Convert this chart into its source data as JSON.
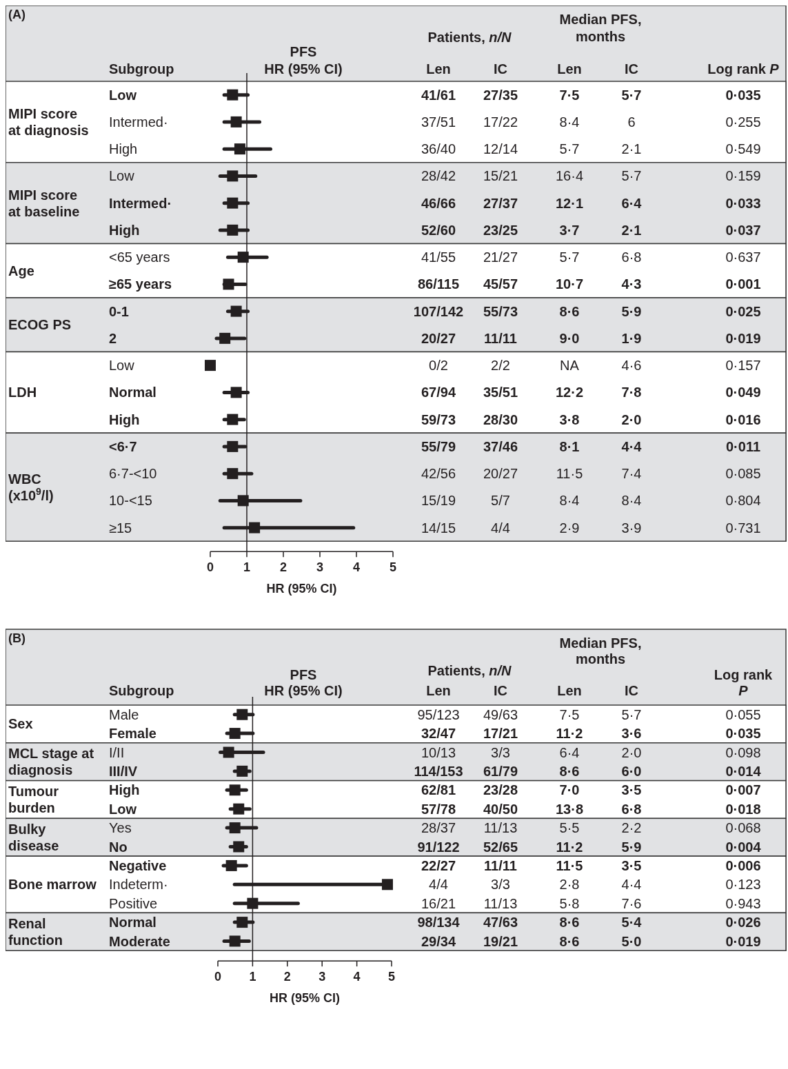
{
  "chart_data": [
    {
      "type": "scatter",
      "orientation": "horizontal",
      "marker": "square",
      "xlabel": "HR (95% CI)",
      "xlim": [
        0,
        5
      ],
      "xticks": [
        0,
        1,
        2,
        3,
        4,
        5
      ],
      "ref_lines": [
        {
          "axis": "x",
          "value": 1
        }
      ],
      "categories": [
        "Low",
        "Intermed·",
        "High",
        "Low",
        "Intermed·",
        "High",
        "<65 years",
        "≥65 years",
        "0-1",
        "2",
        "Low",
        "Normal",
        "High",
        "<6·7",
        "6·7-<10",
        "10-<15",
        "≥15"
      ],
      "values": [
        0.61,
        0.71,
        0.81,
        0.61,
        0.61,
        0.61,
        0.9,
        0.5,
        0.71,
        0.4,
        0,
        0.71,
        0.61,
        0.61,
        0.61,
        0.9,
        1.21
      ],
      "errors": [
        [
          0.38,
          1.03
        ],
        [
          0.38,
          1.35
        ],
        [
          0.38,
          1.65
        ],
        [
          0.27,
          1.24
        ],
        [
          0.38,
          1.03
        ],
        [
          0.27,
          1.03
        ],
        [
          0.48,
          1.55
        ],
        [
          0.38,
          0.96
        ],
        [
          0.48,
          1.03
        ],
        [
          0.17,
          0.94
        ],
        null,
        [
          0.38,
          1.03
        ],
        [
          0.38,
          0.93
        ],
        [
          0.38,
          0.96
        ],
        [
          0.38,
          1.13
        ],
        [
          0.27,
          2.47
        ],
        [
          0.38,
          3.92
        ]
      ],
      "annotations": [
        "(A)",
        "Subgroup",
        "PFS",
        "HR (95% CI)",
        "Patients, n/N",
        "Median PFS, months",
        "Len",
        "IC",
        "Len",
        "IC",
        "Log rank P",
        "MIPI score at diagnosis",
        "MIPI score at baseline",
        "Age",
        "ECOG PS",
        "LDH",
        "WBC (x10$^{9}$/l)",
        "41/61",
        "27/35",
        "7·5",
        "5·7",
        "0·035",
        "37/51",
        "17/22",
        "8·4",
        "6",
        "0·255",
        "36/40",
        "12/14",
        "5·7",
        "2·1",
        "0·549",
        "28/42",
        "15/21",
        "16·4",
        "5·7",
        "0·159",
        "46/66",
        "27/37",
        "12·1",
        "6·4",
        "0·033",
        "52/60",
        "23/25",
        "3·7",
        "2·1",
        "0·037",
        "41/55",
        "21/27",
        "5·7",
        "6·8",
        "0·637",
        "86/115",
        "45/57",
        "10·7",
        "4·3",
        "0·001",
        "107/142",
        "55/73",
        "8·6",
        "5·9",
        "0·025",
        "20/27",
        "11/11",
        "9·0",
        "1·9",
        "0·019",
        "0/2",
        "2/2",
        "NA",
        "4·6",
        "0·157",
        "67/94",
        "35/51",
        "12·2",
        "7·8",
        "0·049",
        "59/73",
        "28/30",
        "3·8",
        "2·0",
        "0·016",
        "55/79",
        "37/46",
        "8·1",
        "4·4",
        "0·011",
        "42/56",
        "20/27",
        "11·5",
        "7·4",
        "0·085",
        "15/19",
        "5/7",
        "8·4",
        "8·4",
        "0·804",
        "14/15",
        "4/4",
        "2·9",
        "3·9",
        "0·731"
      ]
    },
    {
      "type": "scatter",
      "orientation": "horizontal",
      "marker": "square",
      "xlabel": "HR (95% CI)",
      "xlim": [
        0,
        5
      ],
      "xticks": [
        0,
        1,
        2,
        3,
        4,
        5
      ],
      "ref_lines": [
        {
          "axis": "x",
          "value": 1
        }
      ],
      "categories": [
        "Male",
        "Female",
        "I/II",
        "III/IV",
        "High",
        "Low",
        "Yes",
        "No",
        "Negative",
        "Indeterm·",
        "Positive",
        "Normal",
        "Moderate"
      ],
      "values": [
        0.7,
        0.49,
        0.31,
        0.7,
        0.49,
        0.6,
        0.49,
        0.6,
        0.39,
        4.88,
        1.0,
        0.7,
        0.49
      ],
      "errors": [
        [
          0.48,
          1.01
        ],
        [
          0.26,
          1.01
        ],
        [
          0.07,
          1.31
        ],
        [
          0.48,
          0.92
        ],
        [
          0.26,
          0.82
        ],
        [
          0.36,
          0.92
        ],
        [
          0.26,
          1.11
        ],
        [
          0.36,
          0.82
        ],
        [
          0.16,
          0.82
        ],
        [
          0.48,
          4.88
        ],
        [
          0.48,
          2.31
        ],
        [
          0.48,
          1.01
        ],
        [
          0.18,
          0.9
        ]
      ],
      "annotations": [
        "(B)",
        "Subgroup",
        "PFS",
        "HR (95% CI)",
        "Patients, n/N",
        "Median PFS, months",
        "Len",
        "IC",
        "Len",
        "IC",
        "Log rank P",
        "Sex",
        "MCL stage at diagnosis",
        "Tumour burden",
        "Bulky disease",
        "Bone marrow",
        "Renal function",
        "95/123",
        "49/63",
        "7·5",
        "5·7",
        "0·055",
        "32/47",
        "17/21",
        "11·2",
        "3·6",
        "0·035",
        "10/13",
        "3/3",
        "6·4",
        "2·0",
        "0·098",
        "114/153",
        "61/79",
        "8·6",
        "6·0",
        "0·014",
        "62/81",
        "23/28",
        "7·0",
        "3·5",
        "0·007",
        "57/78",
        "40/50",
        "13·8",
        "6·8",
        "0·018",
        "28/37",
        "11/13",
        "5·5",
        "2·2",
        "0·068",
        "91/122",
        "52/65",
        "11·2",
        "5·9",
        "0·004",
        "22/27",
        "11/11",
        "11·5",
        "3·5",
        "0·006",
        "4/4",
        "3/3",
        "2·8",
        "4·4",
        "0·123",
        "16/21",
        "11/13",
        "5·8",
        "7·6",
        "0·943",
        "98/134",
        "47/63",
        "8·6",
        "5·4",
        "0·026",
        "29/34",
        "19/21",
        "8·6",
        "5·0",
        "0·019"
      ]
    }
  ]
}
